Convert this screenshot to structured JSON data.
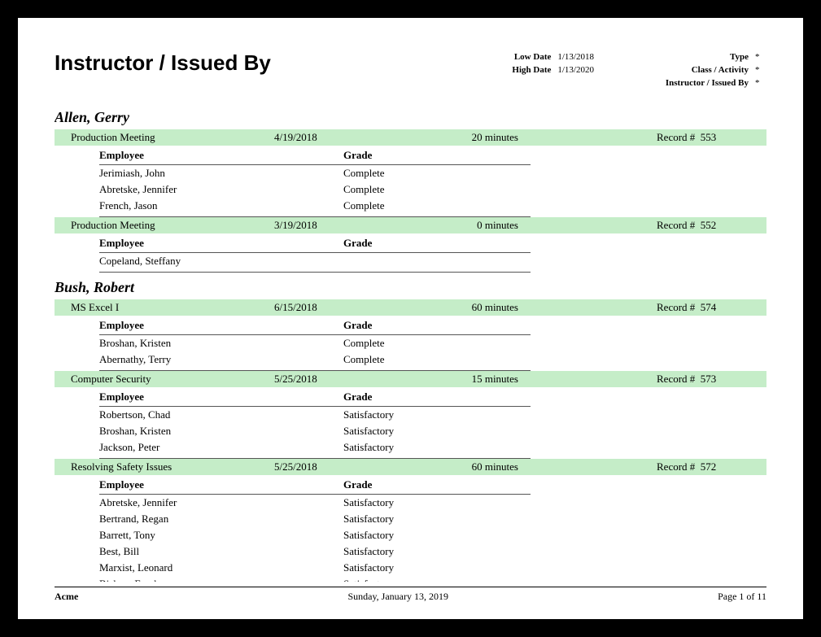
{
  "title": "Instructor / Issued By",
  "meta_left": {
    "low_date_label": "Low Date",
    "low_date_value": "1/13/2018",
    "high_date_label": "High Date",
    "high_date_value": "1/13/2020"
  },
  "meta_right": {
    "type_label": "Type",
    "type_value": "*",
    "class_label": "Class / Activity",
    "class_value": "*",
    "instructor_label": "Instructor / Issued By",
    "instructor_value": "*"
  },
  "col_employee": "Employee",
  "col_grade": "Grade",
  "record_prefix": "Record #",
  "minutes_suffix": "minutes",
  "instructors": [
    {
      "name": "Allen, Gerry",
      "sessions": [
        {
          "title": "Production Meeting",
          "date": "4/19/2018",
          "minutes": "20",
          "record": "553",
          "rows": [
            {
              "employee": "Jerimiash, John",
              "grade": "Complete"
            },
            {
              "employee": "Abretske, Jennifer",
              "grade": "Complete"
            },
            {
              "employee": "French, Jason",
              "grade": "Complete"
            }
          ]
        },
        {
          "title": "Production Meeting",
          "date": "3/19/2018",
          "minutes": "0",
          "record": "552",
          "rows": [
            {
              "employee": "Copeland, Steffany",
              "grade": ""
            }
          ]
        }
      ]
    },
    {
      "name": "Bush, Robert",
      "sessions": [
        {
          "title": "MS Excel I",
          "date": "6/15/2018",
          "minutes": "60",
          "record": "574",
          "rows": [
            {
              "employee": "Broshan, Kristen",
              "grade": "Complete"
            },
            {
              "employee": "Abernathy, Terry",
              "grade": "Complete"
            }
          ]
        },
        {
          "title": "Computer Security",
          "date": "5/25/2018",
          "minutes": "15",
          "record": "573",
          "rows": [
            {
              "employee": "Robertson, Chad",
              "grade": "Satisfactory"
            },
            {
              "employee": "Broshan, Kristen",
              "grade": "Satisfactory"
            },
            {
              "employee": "Jackson, Peter",
              "grade": "Satisfactory"
            }
          ]
        },
        {
          "title": "Resolving Safety Issues",
          "date": "5/25/2018",
          "minutes": "60",
          "record": "572",
          "rows": [
            {
              "employee": "Abretske, Jennifer",
              "grade": "Satisfactory"
            },
            {
              "employee": "Bertrand, Regan",
              "grade": "Satisfactory"
            },
            {
              "employee": "Barrett, Tony",
              "grade": "Satisfactory"
            },
            {
              "employee": "Best, Bill",
              "grade": "Satisfactory"
            },
            {
              "employee": "Marxist, Leonard",
              "grade": "Satisfactory"
            },
            {
              "employee": "Bishop, Frank",
              "grade": "Satisfactory"
            }
          ]
        }
      ]
    }
  ],
  "footer": {
    "company": "Acme",
    "date": "Sunday, January 13, 2019",
    "page": "Page 1 of 11"
  },
  "style": {
    "session_bar_bg": "#c5edc8",
    "page_bg": "#ffffff",
    "frame_bg": "#000000",
    "border_color": "#555555",
    "title_fontsize": 26,
    "instructor_fontsize": 18,
    "body_fontsize": 13,
    "meta_fontsize": 11,
    "footer_fontsize": 12
  }
}
